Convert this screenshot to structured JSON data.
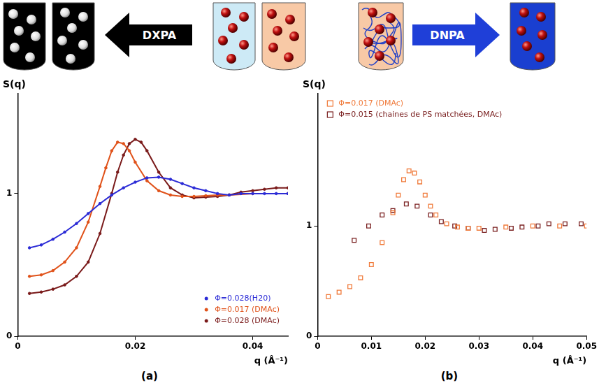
{
  "diagram": {
    "left_arrow": "DXPA",
    "right_arrow": "DNPA"
  },
  "panel_labels": [
    "(a)",
    "(b)"
  ],
  "chart_data": [
    {
      "type": "line",
      "y_label": "S(q)",
      "x_label": "q (Å⁻¹)",
      "xlim": [
        0,
        0.046
      ],
      "ylim": [
        0,
        1.7
      ],
      "xticks": [
        0,
        0.02,
        0.04
      ],
      "yticks": [
        0,
        1
      ],
      "grid": false,
      "legend": "lower right",
      "series": [
        {
          "name": "Φ=0.028(H20)",
          "color": "#2b2bd6",
          "marker": "circle",
          "x": [
            0.002,
            0.004,
            0.006,
            0.008,
            0.01,
            0.012,
            0.014,
            0.016,
            0.018,
            0.02,
            0.022,
            0.024,
            0.026,
            0.028,
            0.03,
            0.032,
            0.034,
            0.036,
            0.038,
            0.04,
            0.042,
            0.044,
            0.046
          ],
          "values": [
            0.62,
            0.64,
            0.68,
            0.73,
            0.79,
            0.86,
            0.93,
            0.99,
            1.04,
            1.08,
            1.11,
            1.115,
            1.1,
            1.07,
            1.04,
            1.02,
            1.0,
            0.99,
            1.0,
            1.0,
            1.0,
            1.0,
            1.0
          ]
        },
        {
          "name": "Φ=0.017 (DMAc)",
          "color": "#e0521a",
          "marker": "circle",
          "x": [
            0.002,
            0.004,
            0.006,
            0.008,
            0.01,
            0.012,
            0.014,
            0.015,
            0.016,
            0.017,
            0.018,
            0.019,
            0.02,
            0.022,
            0.024,
            0.026,
            0.028,
            0.03,
            0.032,
            0.034,
            0.036,
            0.04,
            0.046
          ],
          "values": [
            0.42,
            0.43,
            0.46,
            0.52,
            0.62,
            0.8,
            1.05,
            1.18,
            1.3,
            1.36,
            1.35,
            1.3,
            1.22,
            1.09,
            1.02,
            0.99,
            0.98,
            0.98,
            0.985,
            0.99,
            0.99,
            1.0,
            1.0
          ]
        },
        {
          "name": "Φ=0.028 (DMAc)",
          "color": "#7a1a1a",
          "marker": "circle",
          "x": [
            0.002,
            0.004,
            0.006,
            0.008,
            0.01,
            0.012,
            0.014,
            0.016,
            0.017,
            0.018,
            0.019,
            0.02,
            0.021,
            0.022,
            0.024,
            0.026,
            0.028,
            0.03,
            0.032,
            0.034,
            0.036,
            0.038,
            0.04,
            0.042,
            0.044,
            0.046
          ],
          "values": [
            0.3,
            0.31,
            0.33,
            0.36,
            0.42,
            0.52,
            0.72,
            1.0,
            1.15,
            1.27,
            1.35,
            1.38,
            1.36,
            1.3,
            1.15,
            1.04,
            0.99,
            0.97,
            0.975,
            0.98,
            0.99,
            1.01,
            1.02,
            1.03,
            1.04,
            1.04
          ]
        }
      ]
    },
    {
      "type": "scatter",
      "y_label": "S(q)",
      "x_label": "q (Å⁻¹)",
      "xlim": [
        0,
        0.05
      ],
      "ylim": [
        0,
        2.2
      ],
      "xticks": [
        0,
        0.01,
        0.02,
        0.03,
        0.04,
        0.05
      ],
      "yticks": [
        0,
        1
      ],
      "grid": false,
      "legend": "upper left",
      "series": [
        {
          "name": "Φ=0.017 (DMAc)",
          "color": "#f07a3a",
          "marker": "square",
          "x": [
            0.002,
            0.004,
            0.006,
            0.008,
            0.01,
            0.012,
            0.014,
            0.015,
            0.016,
            0.017,
            0.018,
            0.019,
            0.02,
            0.021,
            0.022,
            0.024,
            0.026,
            0.028,
            0.03,
            0.035,
            0.04,
            0.045,
            0.05
          ],
          "values": [
            0.36,
            0.4,
            0.45,
            0.53,
            0.65,
            0.85,
            1.12,
            1.28,
            1.42,
            1.5,
            1.48,
            1.4,
            1.28,
            1.18,
            1.1,
            1.02,
            0.99,
            0.98,
            0.98,
            0.99,
            1.0,
            1.0,
            1.0
          ]
        },
        {
          "name": "Φ=0.015 (chaines de PS matchées, DMAc)",
          "color": "#7a2020",
          "marker": "square",
          "x": [
            0.0068,
            0.0095,
            0.012,
            0.014,
            0.0165,
            0.0185,
            0.021,
            0.023,
            0.0255,
            0.028,
            0.031,
            0.033,
            0.036,
            0.038,
            0.041,
            0.043,
            0.046,
            0.049
          ],
          "values": [
            0.87,
            1.0,
            1.1,
            1.14,
            1.2,
            1.18,
            1.1,
            1.04,
            1.0,
            0.98,
            0.96,
            0.97,
            0.98,
            0.99,
            1.0,
            1.02,
            1.02,
            1.02
          ]
        }
      ]
    }
  ]
}
